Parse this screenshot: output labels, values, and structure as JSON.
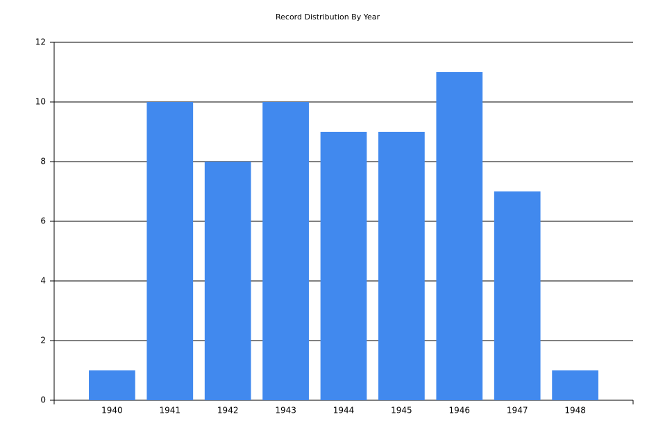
{
  "chart_data": {
    "type": "bar",
    "title": "Record Distribution By Year",
    "categories": [
      "1940",
      "1941",
      "1942",
      "1943",
      "1944",
      "1945",
      "1946",
      "1947",
      "1948"
    ],
    "values": [
      1,
      10,
      8,
      10,
      9,
      9,
      11,
      7,
      1
    ],
    "color": "#4189ee",
    "ylim": [
      0,
      12
    ],
    "yticks": [
      0,
      2,
      4,
      6,
      8,
      10,
      12
    ],
    "grid": true
  }
}
